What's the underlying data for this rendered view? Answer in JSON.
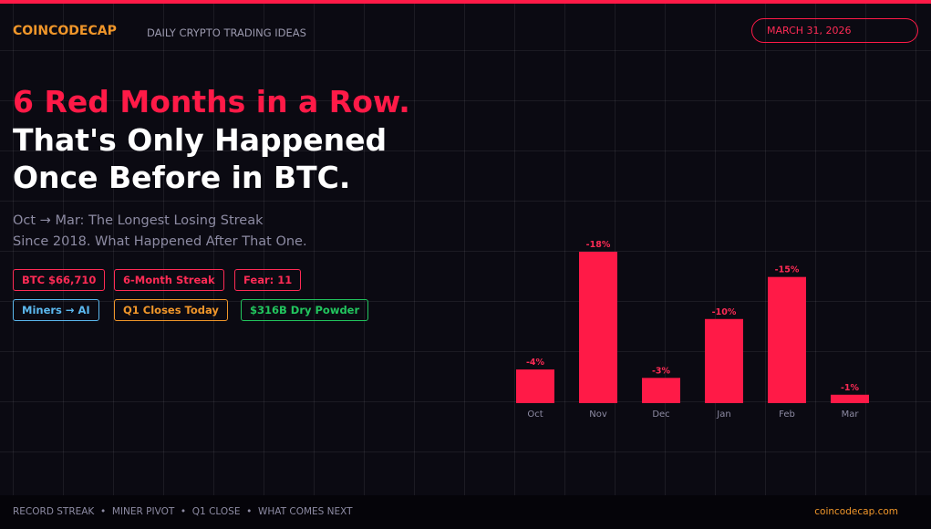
{
  "header": {
    "brand": "COINCODECAP",
    "tagline": "DAILY CRYPTO TRADING IDEAS",
    "date": "MARCH 31, 2026"
  },
  "headline": {
    "line1": "6 Red Months in a Row.",
    "line2": "That's Only Happened",
    "line3": "Once Before in BTC."
  },
  "subtitle": {
    "line1": "Oct → Mar: The Longest Losing Streak",
    "line2": "Since 2018. What Happened After That One."
  },
  "tags": [
    {
      "text": "BTC $66,710",
      "color": "#ff2b55"
    },
    {
      "text": "6-Month Streak",
      "color": "#ff2b55"
    },
    {
      "text": "Fear: 11",
      "color": "#ff2b55"
    },
    {
      "text": "Miners → AI",
      "color": "#5bb8ee"
    },
    {
      "text": "Q1 Closes Today",
      "color": "#f0962a"
    },
    {
      "text": "$316B Dry Powder",
      "color": "#22c55e"
    }
  ],
  "chart_data": {
    "type": "bar",
    "categories": [
      "Oct",
      "Nov",
      "Dec",
      "Jan",
      "Feb",
      "Mar"
    ],
    "values": [
      -4,
      -18,
      -3,
      -10,
      -15,
      -1
    ],
    "value_labels": [
      "-4%",
      "-18%",
      "-3%",
      "-10%",
      "-15%",
      "-1%"
    ],
    "color": "#ff1a47",
    "ylim": [
      0,
      -18
    ]
  },
  "footer": {
    "topics": "RECORD STREAK  •  MINER PIVOT  •  Q1 CLOSE  •  WHAT COMES NEXT",
    "site": "coincodecap.com"
  }
}
